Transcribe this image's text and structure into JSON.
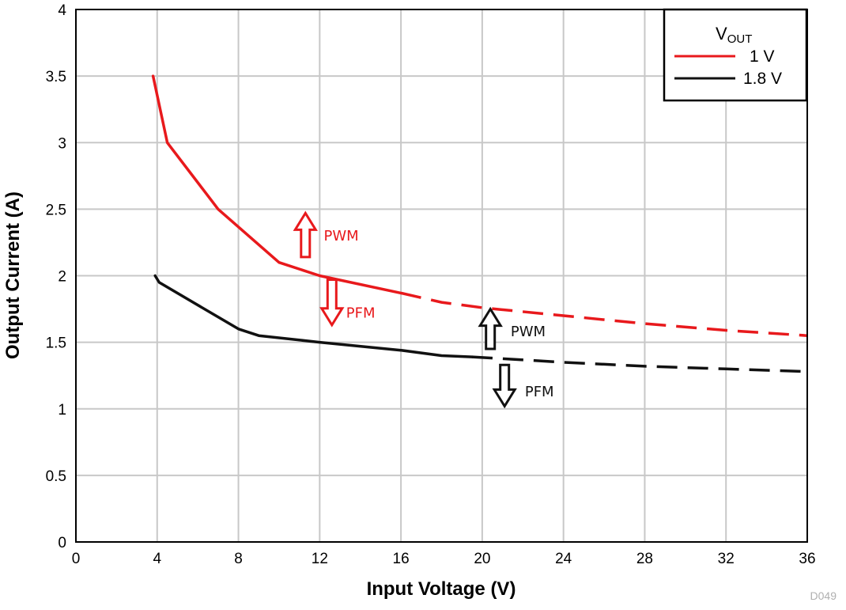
{
  "chart_data": {
    "type": "line",
    "title": "",
    "xlabel": "Input Voltage (V)",
    "ylabel": "Output Current (A)",
    "xlim": [
      0,
      36
    ],
    "ylim": [
      0,
      4
    ],
    "xticks": [
      0,
      4,
      8,
      12,
      16,
      20,
      24,
      28,
      32,
      36
    ],
    "yticks": [
      0,
      0.5,
      1,
      1.5,
      2,
      2.5,
      3,
      3.5,
      4
    ],
    "xtick_labels": [
      "0",
      "4",
      "8",
      "12",
      "16",
      "20",
      "24",
      "28",
      "32",
      "36"
    ],
    "ytick_labels": [
      "0",
      "0.5",
      "1",
      "1.5",
      "2",
      "2.5",
      "3",
      "3.5",
      "4"
    ],
    "grid": true,
    "legend": {
      "title_main": "V",
      "title_sub": "OUT",
      "position": "top-right"
    },
    "series": [
      {
        "name": "1 V",
        "color": "#e8191c",
        "solid": [
          [
            3.8,
            3.5
          ],
          [
            4.5,
            3.0
          ],
          [
            7,
            2.5
          ],
          [
            10,
            2.1
          ],
          [
            12,
            2.0
          ],
          [
            16,
            1.87
          ]
        ],
        "dashed": [
          [
            16,
            1.87
          ],
          [
            18,
            1.8
          ],
          [
            20,
            1.76
          ],
          [
            24,
            1.7
          ],
          [
            28,
            1.64
          ],
          [
            32,
            1.59
          ],
          [
            36,
            1.55
          ]
        ]
      },
      {
        "name": "1.8 V",
        "color": "#111111",
        "solid": [
          [
            3.9,
            2.0
          ],
          [
            4.1,
            1.95
          ],
          [
            8,
            1.6
          ],
          [
            9,
            1.55
          ],
          [
            12,
            1.5
          ],
          [
            16,
            1.44
          ],
          [
            18,
            1.4
          ],
          [
            19.5,
            1.39
          ]
        ],
        "dashed": [
          [
            19.5,
            1.39
          ],
          [
            24,
            1.35
          ],
          [
            28,
            1.32
          ],
          [
            32,
            1.3
          ],
          [
            36,
            1.28
          ]
        ]
      }
    ],
    "annotations": [
      {
        "text": "PWM",
        "x": 12.2,
        "y": 2.3,
        "color": "#e8191c",
        "arrow": "up",
        "arrow_x": 11.3,
        "arrow_y1": 2.14,
        "arrow_y2": 2.47
      },
      {
        "text": "PFM",
        "x": 13.3,
        "y": 1.72,
        "color": "#e8191c",
        "arrow": "down",
        "arrow_x": 12.6,
        "arrow_y1": 1.97,
        "arrow_y2": 1.63
      },
      {
        "text": "PWM",
        "x": 21.4,
        "y": 1.58,
        "color": "#111111",
        "arrow": "up",
        "arrow_x": 20.4,
        "arrow_y1": 1.45,
        "arrow_y2": 1.75
      },
      {
        "text": "PFM",
        "x": 22.1,
        "y": 1.13,
        "color": "#111111",
        "arrow": "down",
        "arrow_x": 21.1,
        "arrow_y1": 1.33,
        "arrow_y2": 1.02
      }
    ],
    "code_label": "D049"
  }
}
